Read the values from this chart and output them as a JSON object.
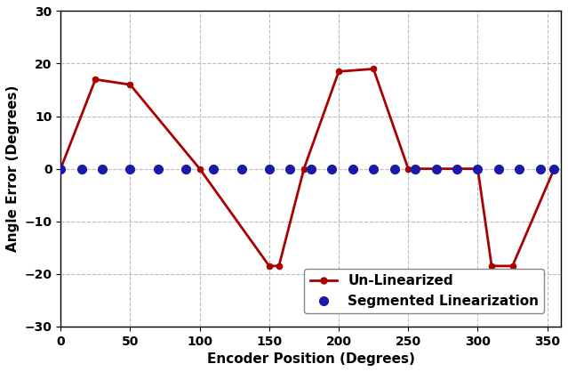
{
  "xlabel": "Encoder Position (Degrees)",
  "ylabel": "Angle Error (Degrees)",
  "unlinearized_x": [
    0,
    25,
    50,
    100,
    150,
    157,
    175,
    200,
    225,
    250,
    300,
    310,
    325,
    355
  ],
  "unlinearized_y": [
    0,
    17,
    16,
    0,
    -18.5,
    -18.5,
    0,
    18.5,
    19,
    0,
    0,
    -18.5,
    -18.5,
    0
  ],
  "segmented_x": [
    0,
    15,
    30,
    50,
    70,
    90,
    110,
    130,
    150,
    165,
    180,
    195,
    210,
    225,
    240,
    255,
    270,
    285,
    300,
    315,
    330,
    345,
    355
  ],
  "segmented_y": [
    0,
    0,
    0,
    0,
    0,
    0,
    0,
    0,
    0,
    0,
    0,
    0,
    0,
    0,
    0,
    0,
    0,
    0,
    0,
    0,
    0,
    0,
    0
  ],
  "line_color": "#aa0000",
  "dot_color": "#1a1aaa",
  "xlim": [
    0,
    360
  ],
  "ylim": [
    -30,
    30
  ],
  "xticks": [
    0,
    50,
    100,
    150,
    200,
    250,
    300,
    350
  ],
  "yticks": [
    -30,
    -20,
    -10,
    0,
    10,
    20,
    30
  ],
  "grid_color": "#bbbbbb",
  "background_color": "#ffffff",
  "line_width": 2.0,
  "marker_size": 5,
  "dot_size": 7,
  "label_fontsize": 11,
  "tick_fontsize": 10,
  "legend_fontsize": 11
}
